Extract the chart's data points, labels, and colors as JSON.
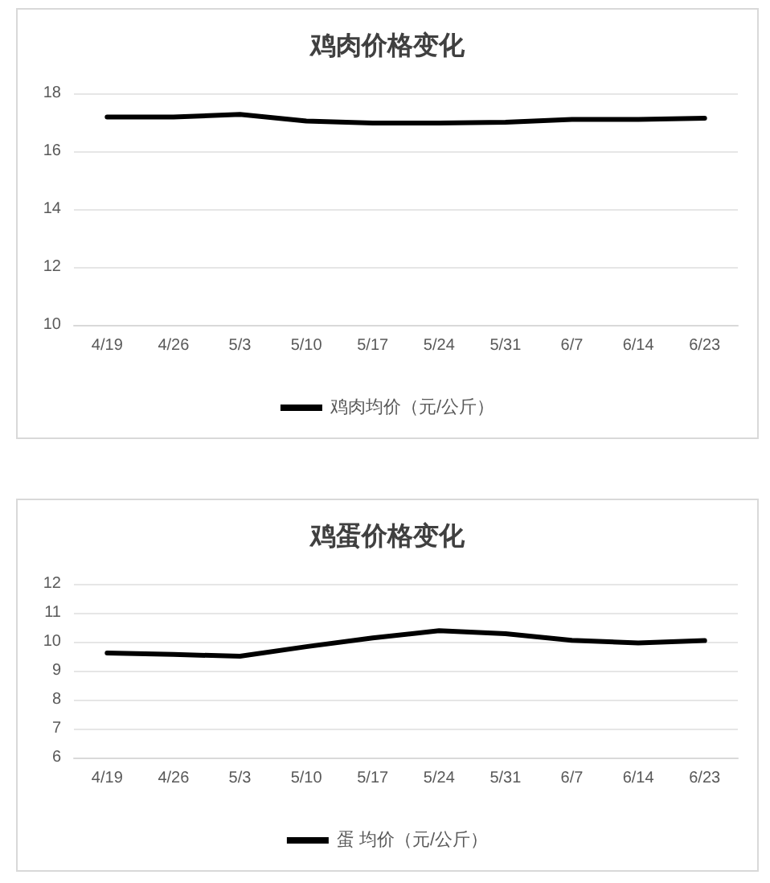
{
  "chart_data": [
    {
      "type": "line",
      "title": "鸡肉价格变化",
      "categories": [
        "4/19",
        "4/26",
        "5/3",
        "5/10",
        "5/17",
        "5/24",
        "5/31",
        "6/7",
        "6/14",
        "6/23"
      ],
      "series": [
        {
          "name": "鸡肉均价（元/公斤）",
          "color": "#000000",
          "values": [
            17.18,
            17.18,
            17.27,
            17.04,
            16.97,
            16.97,
            17.0,
            17.1,
            17.1,
            17.14
          ]
        }
      ],
      "ylim": [
        10,
        18
      ],
      "yticks": [
        10,
        12,
        14,
        16,
        18
      ],
      "grid": "y",
      "legend": "bottom",
      "marker": "none",
      "line_style": "solid"
    },
    {
      "type": "line",
      "title": "鸡蛋价格变化",
      "categories": [
        "4/19",
        "4/26",
        "5/3",
        "5/10",
        "5/17",
        "5/24",
        "5/31",
        "6/7",
        "6/14",
        "6/23"
      ],
      "series": [
        {
          "name": "蛋 均价（元/公斤）",
          "color": "#000000",
          "values": [
            9.61,
            9.56,
            9.5,
            9.83,
            10.13,
            10.38,
            10.28,
            10.05,
            9.96,
            10.04
          ]
        }
      ],
      "ylim": [
        6,
        12
      ],
      "yticks": [
        6,
        7,
        8,
        9,
        10,
        11,
        12
      ],
      "grid": "y",
      "legend": "bottom",
      "marker": "none",
      "line_style": "solid"
    }
  ]
}
